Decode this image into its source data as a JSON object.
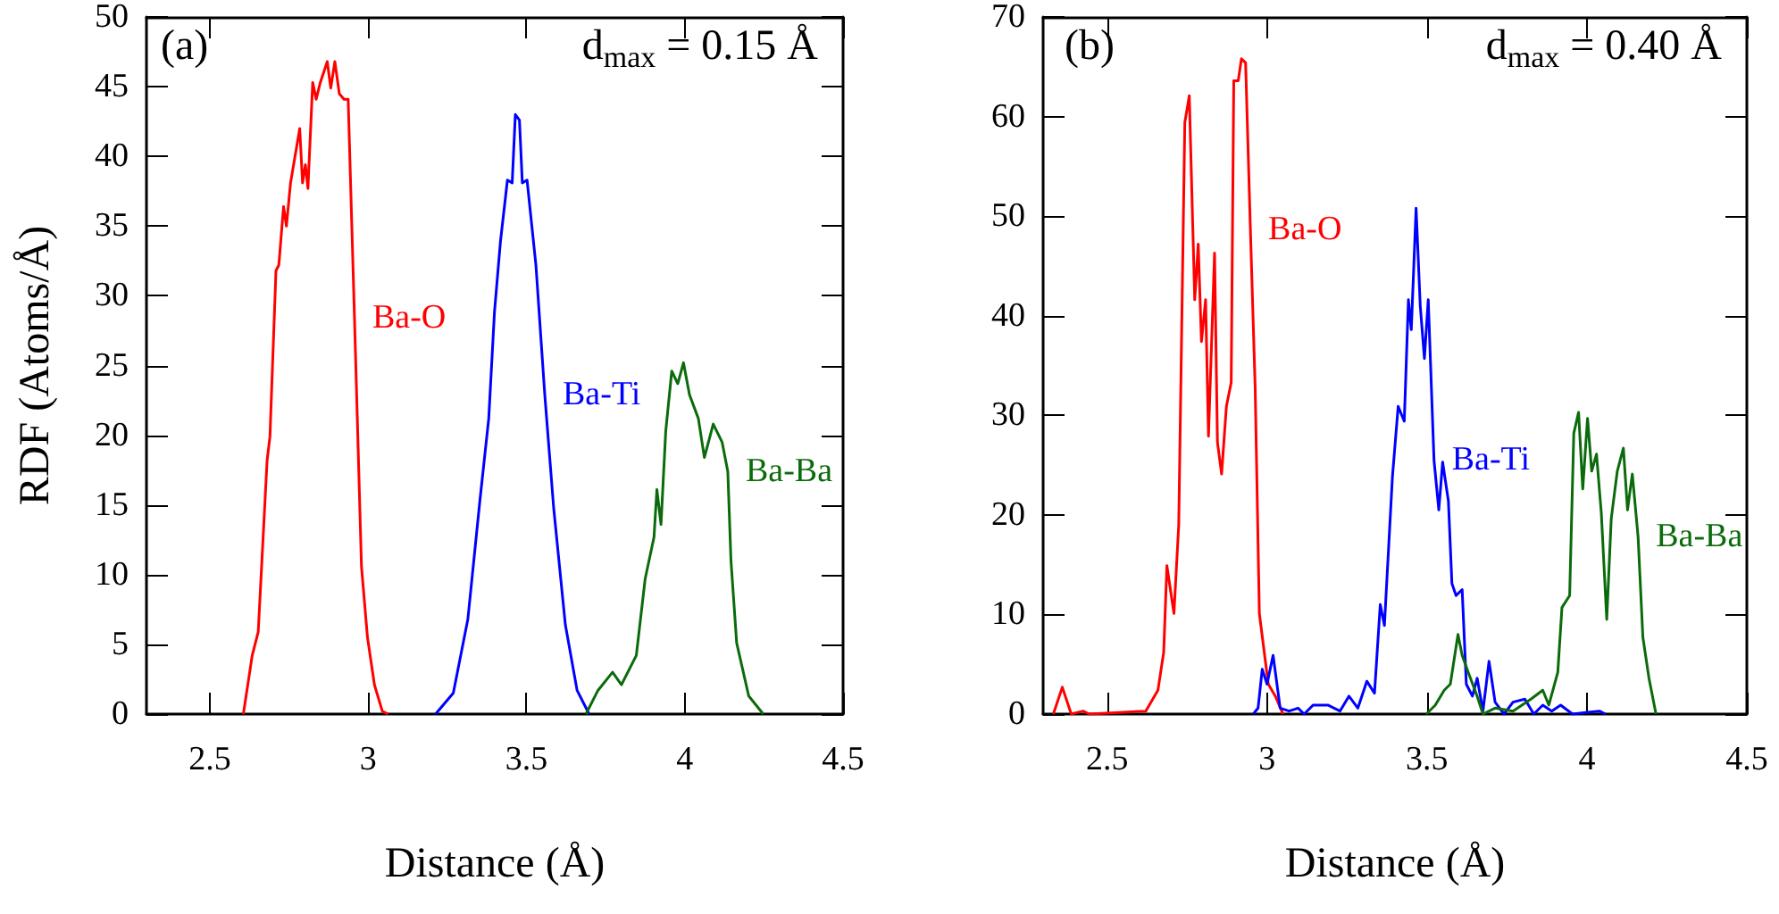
{
  "chart_data": [
    {
      "type": "line",
      "xlabel": "Distance (Å)",
      "ylabel": "RDF (Atoms/Å)",
      "annotations": [
        "(a)",
        "d$_{max}$ = 0.15 Å"
      ],
      "xlim": [
        2.3,
        4.5
      ],
      "xticks": [
        2.5,
        3,
        3.5,
        4,
        4.5
      ],
      "ylim": [
        0,
        50
      ],
      "yticks": [
        0,
        5,
        10,
        15,
        20,
        25,
        30,
        35,
        40,
        45,
        50
      ],
      "marker": "none",
      "series": [
        {
          "name": "Ba-O",
          "color": "#ff0000",
          "x": [
            2.606,
            2.634,
            2.653,
            2.681,
            2.69,
            2.709,
            2.718,
            2.733,
            2.742,
            2.755,
            2.784,
            2.793,
            2.802,
            2.81,
            2.825,
            2.836,
            2.849,
            2.871,
            2.882,
            2.895,
            2.909,
            2.924,
            2.937,
            2.957,
            2.979,
            2.998,
            3.02,
            3.045,
            3.063
          ],
          "values": [
            0,
            4.2,
            5.9,
            18.2,
            19.9,
            31.8,
            32.2,
            36.4,
            35,
            38.1,
            42,
            38.1,
            39.4,
            37.7,
            45.3,
            44.1,
            45.3,
            46.8,
            44.9,
            46.8,
            44.5,
            44.1,
            44.1,
            28.4,
            10.6,
            5.5,
            2.1,
            0.2,
            0
          ]
        },
        {
          "name": "Ba-Ti",
          "color": "#0000ff",
          "x": [
            3.213,
            3.269,
            3.315,
            3.353,
            3.381,
            3.399,
            3.418,
            3.44,
            3.455,
            3.465,
            3.478,
            3.487,
            3.502,
            3.53,
            3.558,
            3.586,
            3.623,
            3.66,
            3.698
          ],
          "values": [
            0,
            1.5,
            6.8,
            15.3,
            21.2,
            28.8,
            33.9,
            38.3,
            38.1,
            43,
            42.6,
            38.1,
            38.3,
            32.2,
            22.9,
            14.8,
            6.4,
            1.7,
            0
          ]
        },
        {
          "name": "Ba-Ba",
          "color": "#0b6b0b",
          "x": [
            3.688,
            3.726,
            3.772,
            3.8,
            3.847,
            3.875,
            3.903,
            3.912,
            3.925,
            3.94,
            3.959,
            3.978,
            3.996,
            4.015,
            4.043,
            4.062,
            4.09,
            4.118,
            4.136,
            4.146,
            4.164,
            4.202,
            4.248
          ],
          "values": [
            0,
            1.7,
            3,
            2.1,
            4.2,
            9.7,
            12.7,
            16.1,
            13.6,
            20.3,
            24.6,
            23.7,
            25.2,
            22.9,
            21.2,
            18.4,
            20.8,
            19.5,
            17.4,
            11,
            5.1,
            1.3,
            0
          ]
        }
      ]
    },
    {
      "type": "line",
      "xlabel": "Distance (Å)",
      "annotations": [
        "(b)",
        "d$_{max}$ = 0.40 Å"
      ],
      "xlim": [
        2.3,
        4.5
      ],
      "xticks": [
        2.5,
        3,
        3.5,
        4,
        4.5
      ],
      "ylim": [
        0,
        70
      ],
      "yticks": [
        0,
        10,
        20,
        30,
        40,
        50,
        60,
        70
      ],
      "marker": "none",
      "series": [
        {
          "name": "Ba-O",
          "color": "#ff0000",
          "x": [
            2.332,
            2.36,
            2.388,
            2.425,
            2.444,
            2.621,
            2.659,
            2.677,
            2.687,
            2.709,
            2.724,
            2.743,
            2.757,
            2.774,
            2.785,
            2.795,
            2.808,
            2.817,
            2.836,
            2.845,
            2.858,
            2.873,
            2.888,
            2.896,
            2.91,
            2.92,
            2.933,
            2.948,
            2.963,
            2.976,
            3.004,
            3.026,
            3.05
          ],
          "values": [
            0,
            2.7,
            0,
            0.3,
            0,
            0.3,
            2.4,
            6.2,
            14.9,
            10.1,
            19,
            59.4,
            62.1,
            41.6,
            47.2,
            37.4,
            41.6,
            27.9,
            46.3,
            27.3,
            24.1,
            30.9,
            33.3,
            63.6,
            63.6,
            65.8,
            65.4,
            48.7,
            32.7,
            10.1,
            3,
            1.8,
            0
          ]
        },
        {
          "name": "Ba-Ti",
          "color": "#0000ff",
          "x": [
            2.957,
            2.972,
            2.985,
            3.0,
            3.019,
            3.041,
            3.069,
            3.097,
            3.116,
            3.144,
            3.19,
            3.228,
            3.256,
            3.284,
            3.312,
            3.336,
            3.354,
            3.367,
            3.392,
            3.41,
            3.429,
            3.442,
            3.451,
            3.466,
            3.479,
            3.492,
            3.504,
            3.522,
            3.537,
            3.549,
            3.567,
            3.578,
            3.591,
            3.61,
            3.623,
            3.642,
            3.657,
            3.675,
            3.694,
            3.713,
            3.741,
            3.769,
            3.806,
            3.834,
            3.862,
            3.89,
            3.918,
            3.955,
            4.039,
            4.058
          ],
          "values": [
            0,
            0.6,
            4.5,
            3,
            5.9,
            0.6,
            0.3,
            0.6,
            0,
            0.9,
            0.9,
            0.3,
            1.8,
            0.6,
            3.3,
            2.1,
            11,
            8.9,
            23.8,
            30.9,
            29.4,
            41.6,
            38.6,
            50.8,
            41,
            35.7,
            41.6,
            25.5,
            20.5,
            25.3,
            21.4,
            13.1,
            11.9,
            12.5,
            3,
            1.8,
            3.6,
            0.3,
            5.3,
            1.2,
            0,
            1.2,
            1.5,
            0,
            0.9,
            0.3,
            0.9,
            0,
            0.3,
            0
          ]
        },
        {
          "name": "Ba-Ba",
          "color": "#0b6b0b",
          "x": [
            3.498,
            3.526,
            3.554,
            3.573,
            3.597,
            3.61,
            3.629,
            3.657,
            3.675,
            3.713,
            3.769,
            3.825,
            3.862,
            3.881,
            3.909,
            3.922,
            3.946,
            3.959,
            3.974,
            3.987,
            4.002,
            4.015,
            4.03,
            4.045,
            4.062,
            4.076,
            4.095,
            4.114,
            4.127,
            4.142,
            4.16,
            4.175,
            4.194,
            4.216
          ],
          "values": [
            0,
            0.9,
            2.4,
            3,
            8,
            5.9,
            4.2,
            1.8,
            0,
            0.6,
            0.3,
            1.5,
            2.4,
            0.9,
            4.2,
            10.7,
            11.9,
            28.2,
            30.3,
            22.6,
            29.7,
            24.4,
            26.1,
            20.2,
            9.5,
            19.6,
            24.4,
            26.7,
            20.5,
            24.1,
            17.8,
            7.7,
            3.6,
            0
          ]
        }
      ]
    }
  ]
}
